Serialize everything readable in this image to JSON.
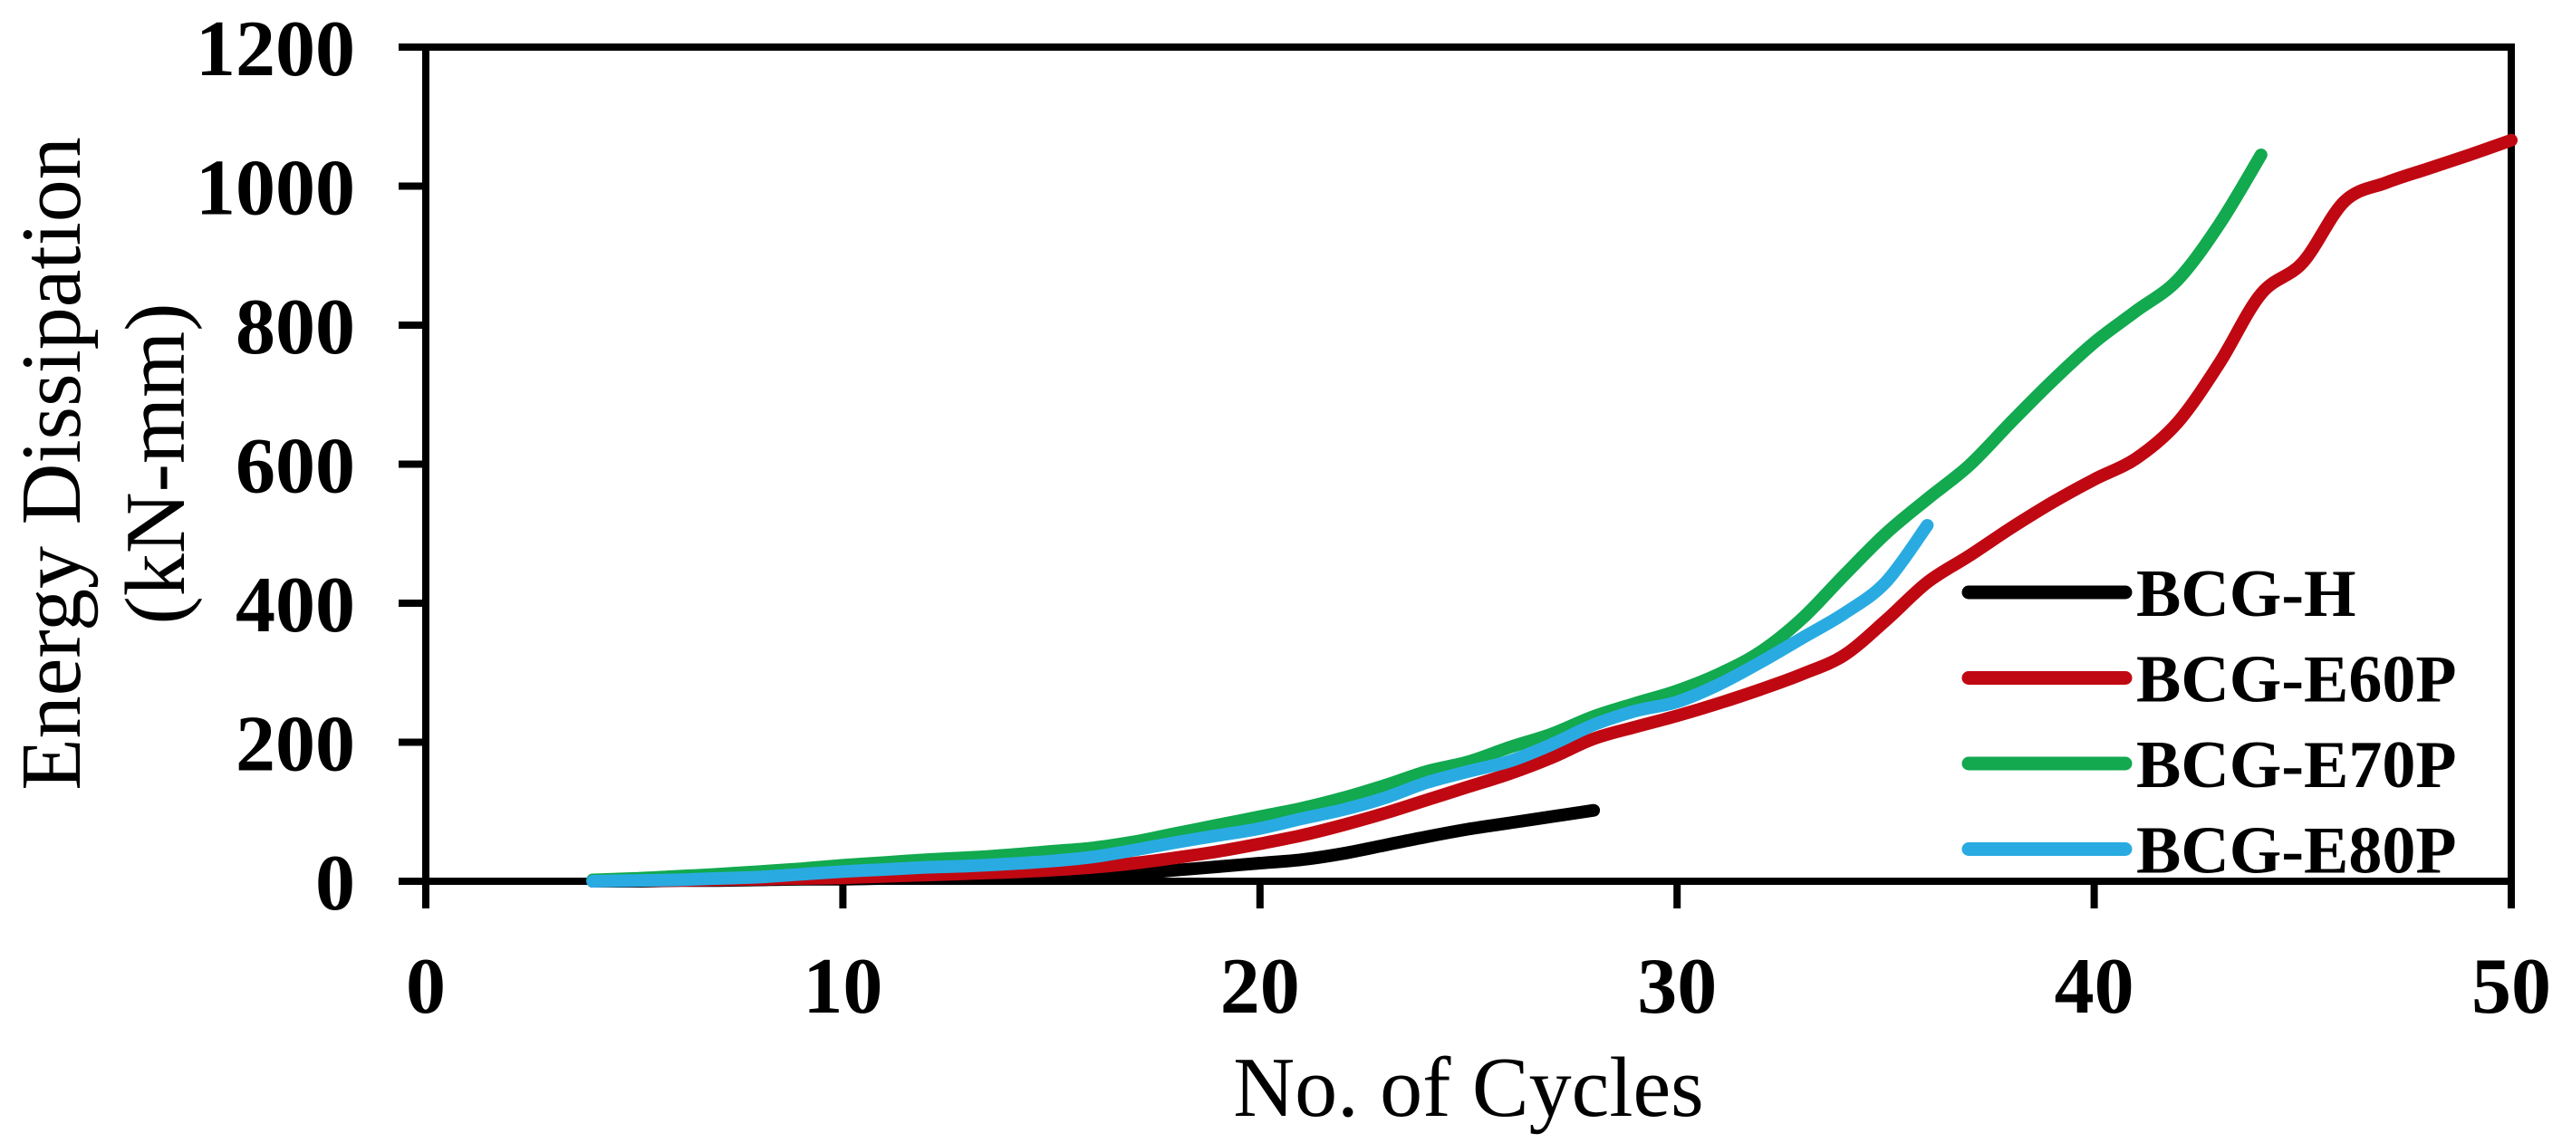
{
  "chart_data": {
    "type": "line",
    "title": "",
    "xlabel": "No. of Cycles",
    "ylabel": "Energy Dissipation (kN-mm)",
    "ylabel_lines": [
      "Energy Dissipation",
      "(kN-mm)"
    ],
    "xlim": [
      0,
      50
    ],
    "ylim": [
      0,
      1200
    ],
    "x_ticks": [
      0,
      10,
      20,
      30,
      40,
      50
    ],
    "y_ticks": [
      0,
      200,
      400,
      600,
      800,
      1000,
      1200
    ],
    "grid": false,
    "frame": true,
    "axis_color": "#000000",
    "background_color": "#ffffff",
    "legend": {
      "position": "inside-right",
      "entries": [
        "BCG-H",
        "BCG-E60P",
        "BCG-E70P",
        "BCG-E80P"
      ]
    },
    "series": [
      {
        "name": "BCG-H",
        "color": "#000000",
        "points": [
          [
            4,
            0
          ],
          [
            5,
            0
          ],
          [
            6,
            1
          ],
          [
            7,
            1
          ],
          [
            8,
            2
          ],
          [
            9,
            3
          ],
          [
            10,
            3
          ],
          [
            11,
            4
          ],
          [
            12,
            5
          ],
          [
            13,
            6
          ],
          [
            14,
            7
          ],
          [
            15,
            8
          ],
          [
            16,
            9
          ],
          [
            17,
            11
          ],
          [
            18,
            16
          ],
          [
            19,
            21
          ],
          [
            20,
            26
          ],
          [
            21,
            31
          ],
          [
            22,
            40
          ],
          [
            23,
            52
          ],
          [
            24,
            64
          ],
          [
            25,
            75
          ],
          [
            26,
            84
          ],
          [
            27,
            93
          ],
          [
            28,
            102
          ]
        ]
      },
      {
        "name": "BCG-E60P",
        "color": "#C00812",
        "points": [
          [
            4,
            0
          ],
          [
            5,
            1
          ],
          [
            6,
            1
          ],
          [
            7,
            2
          ],
          [
            8,
            3
          ],
          [
            9,
            4
          ],
          [
            10,
            5
          ],
          [
            11,
            7
          ],
          [
            12,
            9
          ],
          [
            13,
            11
          ],
          [
            14,
            13
          ],
          [
            15,
            16
          ],
          [
            16,
            20
          ],
          [
            17,
            26
          ],
          [
            18,
            34
          ],
          [
            19,
            43
          ],
          [
            20,
            54
          ],
          [
            21,
            66
          ],
          [
            22,
            81
          ],
          [
            23,
            98
          ],
          [
            24,
            117
          ],
          [
            25,
            136
          ],
          [
            26,
            155
          ],
          [
            27,
            178
          ],
          [
            28,
            205
          ],
          [
            29,
            222
          ],
          [
            30,
            238
          ],
          [
            31,
            256
          ],
          [
            32,
            276
          ],
          [
            33,
            298
          ],
          [
            34,
            325
          ],
          [
            35,
            375
          ],
          [
            36,
            430
          ],
          [
            37,
            468
          ],
          [
            38,
            508
          ],
          [
            39,
            545
          ],
          [
            40,
            578
          ],
          [
            41,
            608
          ],
          [
            42,
            660
          ],
          [
            43,
            745
          ],
          [
            44,
            845
          ],
          [
            45,
            890
          ],
          [
            46,
            978
          ],
          [
            47,
            1005
          ],
          [
            48,
            1025
          ],
          [
            49,
            1045
          ],
          [
            50,
            1066
          ]
        ]
      },
      {
        "name": "BCG-E70P",
        "color": "#12A94F",
        "points": [
          [
            4,
            2
          ],
          [
            5,
            4
          ],
          [
            6,
            7
          ],
          [
            7,
            10
          ],
          [
            8,
            14
          ],
          [
            9,
            18
          ],
          [
            10,
            23
          ],
          [
            11,
            27
          ],
          [
            12,
            31
          ],
          [
            13,
            34
          ],
          [
            14,
            38
          ],
          [
            15,
            43
          ],
          [
            16,
            48
          ],
          [
            17,
            57
          ],
          [
            18,
            69
          ],
          [
            19,
            81
          ],
          [
            20,
            93
          ],
          [
            21,
            105
          ],
          [
            22,
            120
          ],
          [
            23,
            138
          ],
          [
            24,
            158
          ],
          [
            25,
            172
          ],
          [
            26,
            193
          ],
          [
            27,
            212
          ],
          [
            28,
            237
          ],
          [
            29,
            256
          ],
          [
            30,
            274
          ],
          [
            31,
            298
          ],
          [
            32,
            330
          ],
          [
            33,
            378
          ],
          [
            34,
            440
          ],
          [
            35,
            500
          ],
          [
            36,
            550
          ],
          [
            37,
            598
          ],
          [
            38,
            660
          ],
          [
            39,
            720
          ],
          [
            40,
            775
          ],
          [
            41,
            820
          ],
          [
            42,
            865
          ],
          [
            43,
            945
          ],
          [
            44,
            1045
          ]
        ]
      },
      {
        "name": "BCG-E80P",
        "color": "#29ABE2",
        "points": [
          [
            4,
            0
          ],
          [
            5,
            1
          ],
          [
            6,
            2
          ],
          [
            7,
            4
          ],
          [
            8,
            6
          ],
          [
            9,
            10
          ],
          [
            10,
            14
          ],
          [
            11,
            17
          ],
          [
            12,
            20
          ],
          [
            13,
            22
          ],
          [
            14,
            25
          ],
          [
            15,
            29
          ],
          [
            16,
            35
          ],
          [
            17,
            45
          ],
          [
            18,
            56
          ],
          [
            19,
            66
          ],
          [
            20,
            76
          ],
          [
            21,
            90
          ],
          [
            22,
            103
          ],
          [
            23,
            120
          ],
          [
            24,
            142
          ],
          [
            25,
            158
          ],
          [
            26,
            173
          ],
          [
            27,
            197
          ],
          [
            28,
            225
          ],
          [
            29,
            245
          ],
          [
            30,
            258
          ],
          [
            31,
            283
          ],
          [
            32,
            315
          ],
          [
            33,
            350
          ],
          [
            34,
            385
          ],
          [
            35,
            430
          ],
          [
            36,
            512
          ]
        ]
      }
    ]
  }
}
